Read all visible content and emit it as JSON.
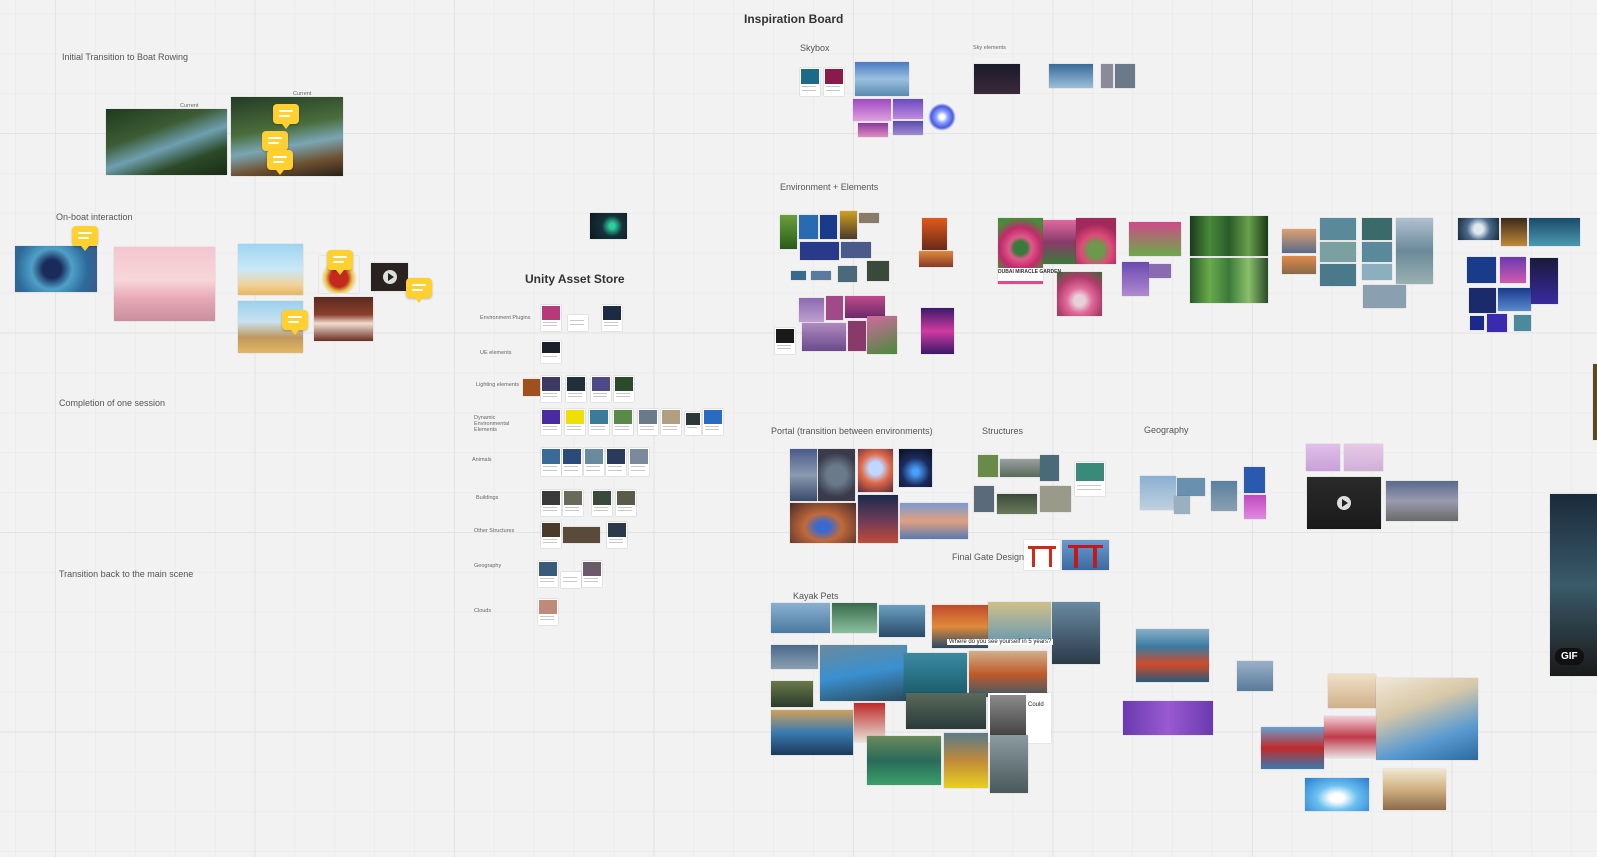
{
  "board": {
    "title": "Inspiration Board",
    "unity_title": "Unity Asset Store"
  },
  "sections": {
    "initial_transition": "Initial Transition to Boat Rowing",
    "on_boat": "On-boat interaction",
    "completion": "Completion of one session",
    "transition_back": "Transition back to the main scene",
    "skybox": "Skybox",
    "sky_elements": "Sky elements",
    "environment": "Environment + Elements",
    "portal": "Portal (transition between environments)",
    "structures": "Structures",
    "geography": "Geography",
    "final_gate": "Final Gate Design:",
    "kayak_pets": "Kayak Pets"
  },
  "captions": {
    "current_a": "Current",
    "current_b": "Current",
    "garden_label": "DUBAI MIRACLE GARDEN",
    "kayak_quote": "Where do you see yourself in 5 years?",
    "kayak_could": "Could"
  },
  "unity_rows": [
    {
      "label": "Environment Plugins"
    },
    {
      "label": "UE elements"
    },
    {
      "label": "Lighting elements"
    },
    {
      "label": "Dynamic Environmental Elements"
    },
    {
      "label": "Animals"
    },
    {
      "label": "Buildings"
    },
    {
      "label": "Other Structures"
    },
    {
      "label": "Geography"
    },
    {
      "label": "Clouds"
    }
  ],
  "badges": {
    "gif": "GIF"
  },
  "colors": {
    "canvas": "#f2f2f2",
    "comment": "#ffd02f",
    "grid": "#e4e4e4"
  }
}
